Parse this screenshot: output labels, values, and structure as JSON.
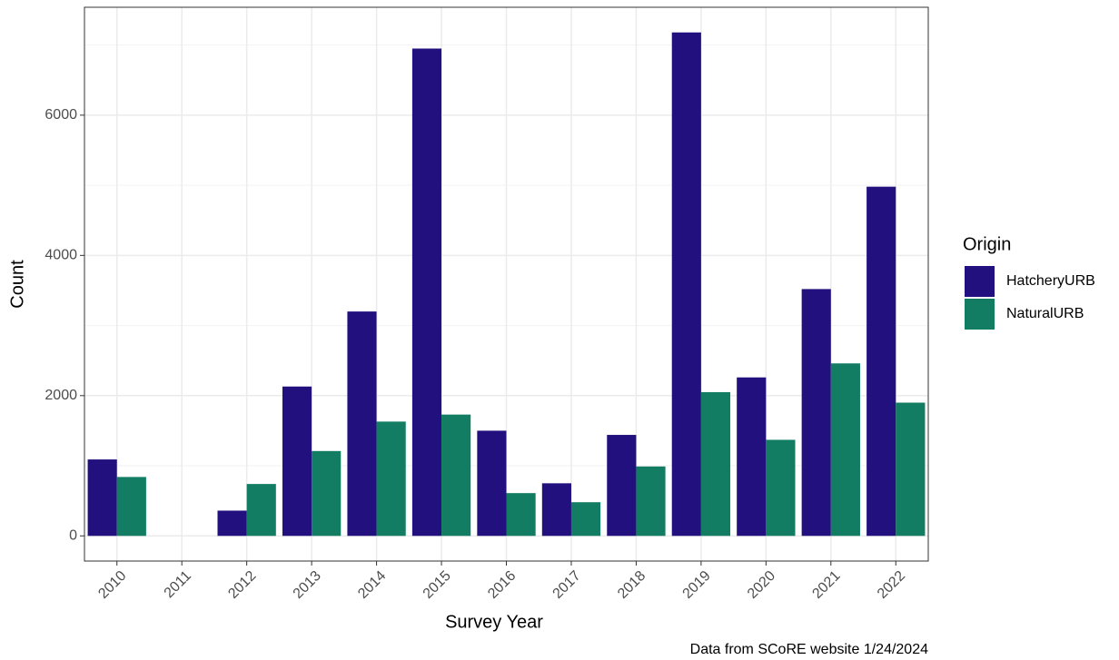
{
  "chart_data": {
    "type": "bar",
    "x_label": "Survey Year",
    "y_label": "Count",
    "legend_title": "Origin",
    "caption": "Data from SCoRE website 1/24/2024",
    "categories": [
      "2010",
      "2011",
      "2012",
      "2013",
      "2014",
      "2015",
      "2016",
      "2017",
      "2018",
      "2019",
      "2020",
      "2021",
      "2022"
    ],
    "series": [
      {
        "name": "HatcheryURB",
        "color": "#21107e",
        "values": [
          1090,
          null,
          360,
          2130,
          3200,
          6950,
          1500,
          750,
          1440,
          7180,
          2260,
          3520,
          4980
        ]
      },
      {
        "name": "NaturalURB",
        "color": "#127d63",
        "values": [
          840,
          null,
          740,
          1210,
          1630,
          1730,
          610,
          480,
          990,
          2050,
          1370,
          2460,
          1900
        ]
      }
    ],
    "ylim": [
      -359,
      7539
    ],
    "yticks": [
      0,
      2000,
      4000,
      6000
    ],
    "grid": true,
    "legend": "right"
  }
}
